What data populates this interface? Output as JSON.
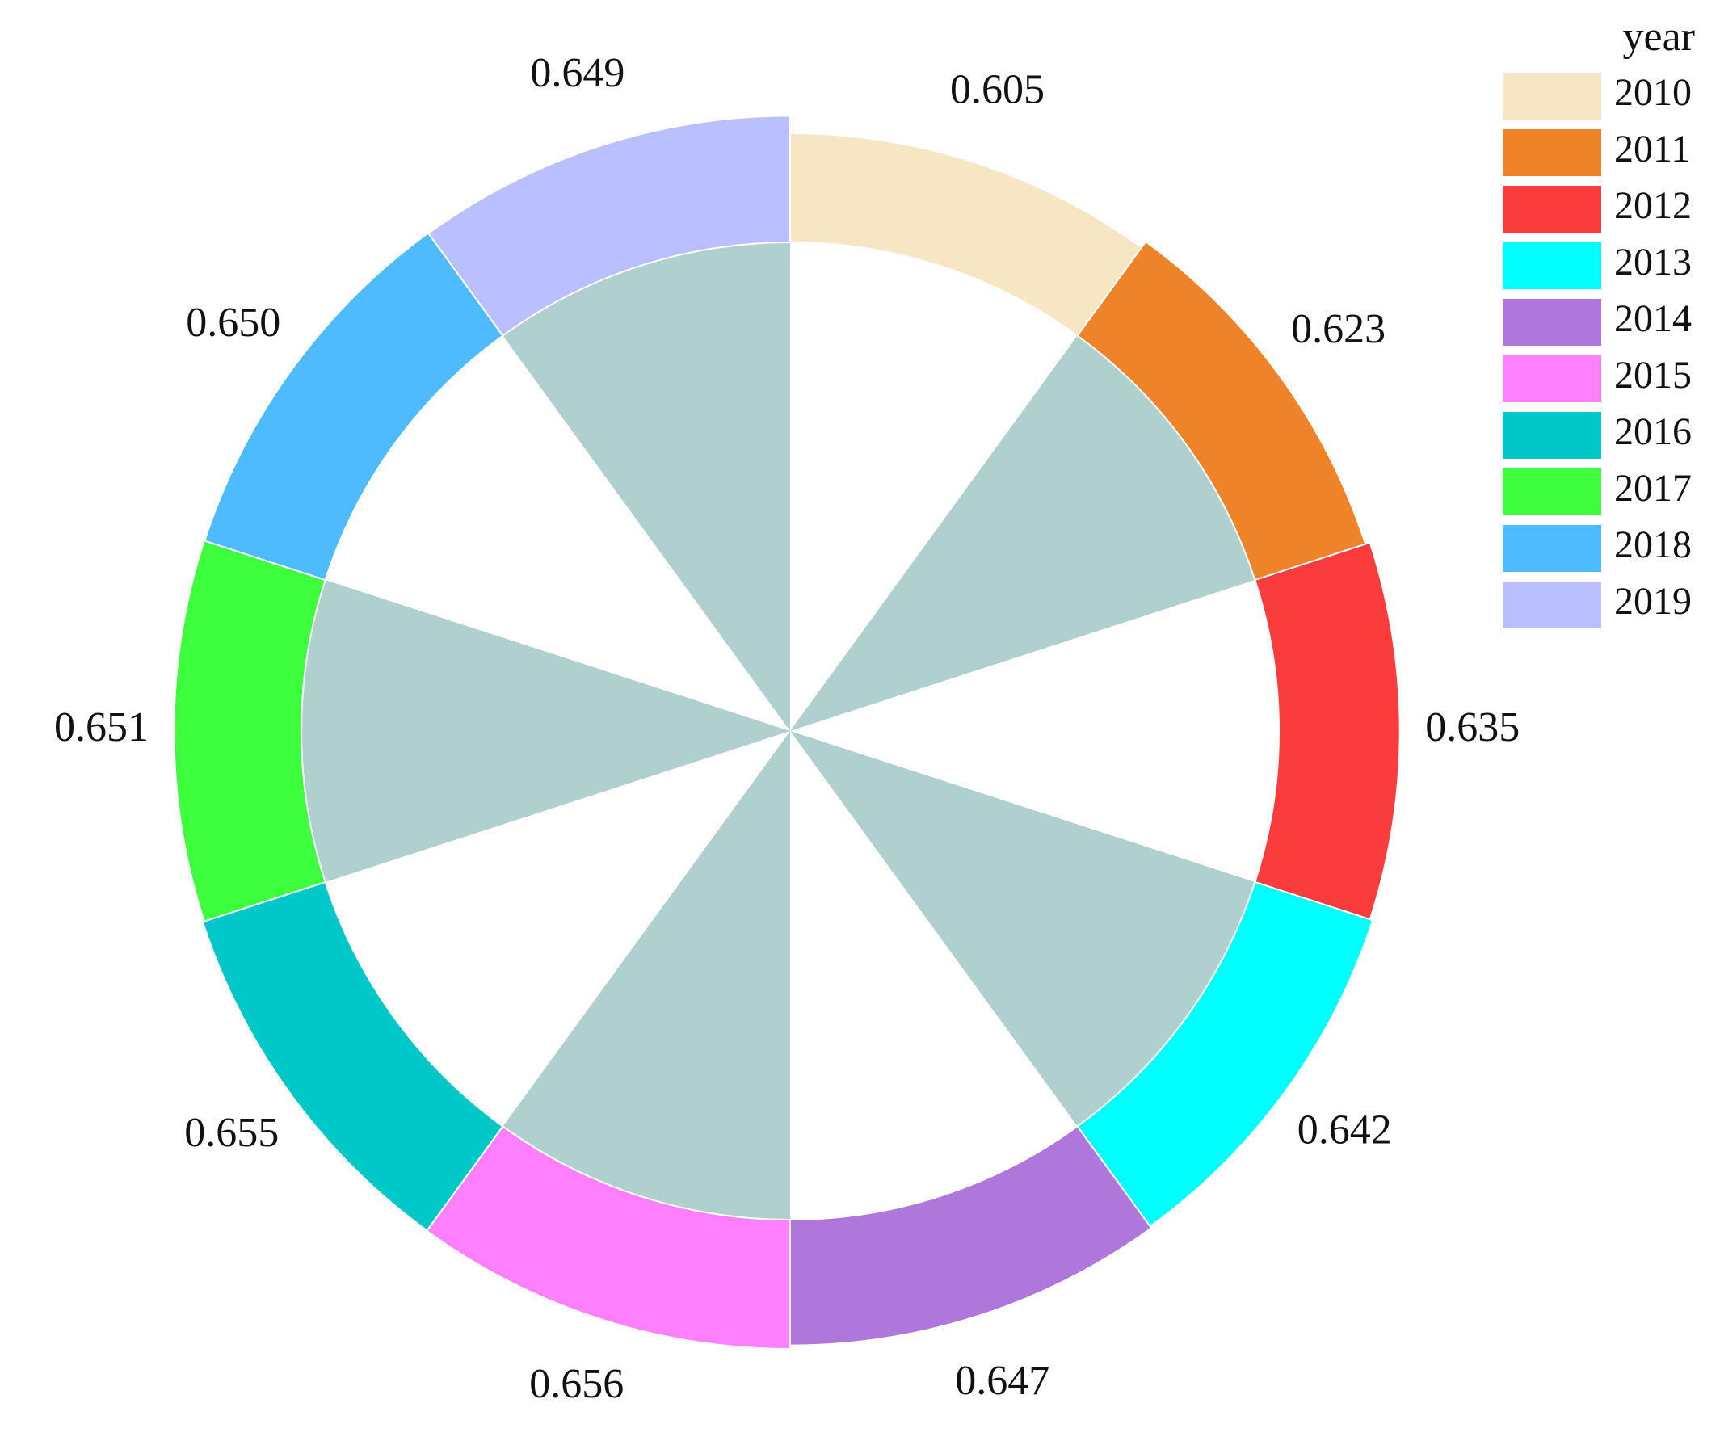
{
  "chart_data": {
    "type": "pie",
    "legend": {
      "title": "year",
      "placement": "top-right"
    },
    "categories": [
      "2010",
      "2011",
      "2012",
      "2013",
      "2014",
      "2015",
      "2016",
      "2017",
      "2018",
      "2019"
    ],
    "values": [
      0.605,
      0.623,
      0.635,
      0.642,
      0.647,
      0.656,
      0.655,
      0.651,
      0.65,
      0.649
    ],
    "value_labels": [
      "0.605",
      "0.623",
      "0.635",
      "0.642",
      "0.647",
      "0.656",
      "0.655",
      "0.651",
      "0.650",
      "0.649"
    ],
    "colors": [
      "#F7E6C3",
      "#EE832A",
      "#FA3C3C",
      "#00FFFF",
      "#AF76DB",
      "#FF80FF",
      "#00C8C8",
      "#3EFF3E",
      "#4EBBFF",
      "#BAC0FF"
    ],
    "inner_fill_color": "#B0D0CF",
    "inner_fill_pattern": "alternating"
  }
}
